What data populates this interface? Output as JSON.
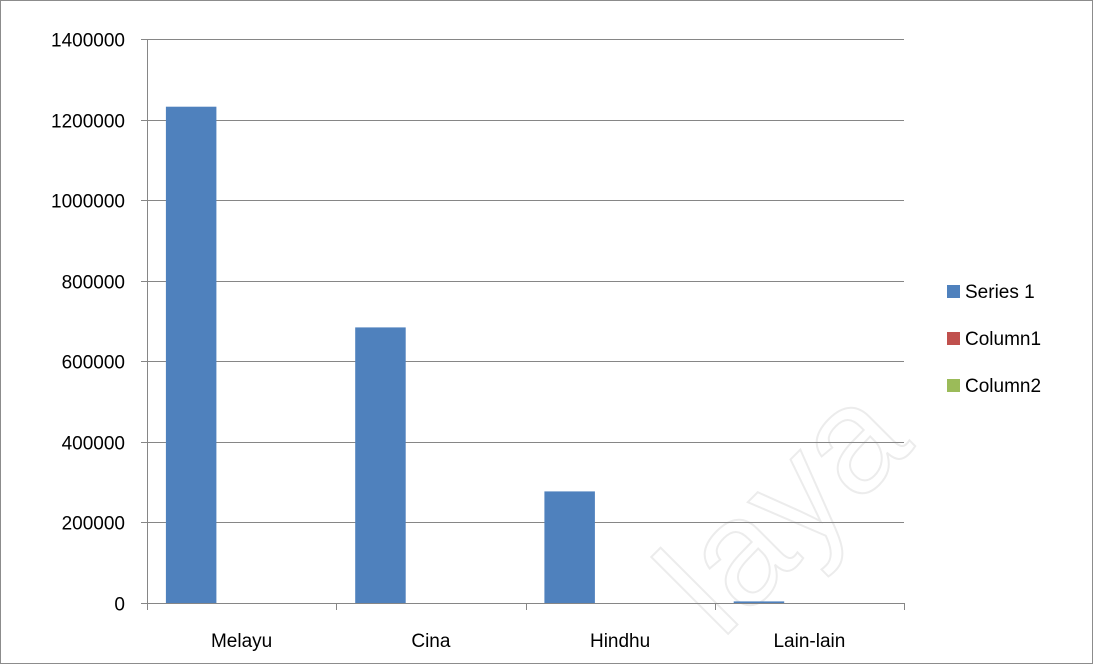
{
  "chart_data": {
    "type": "bar",
    "categories": [
      "Melayu",
      "Cina",
      "Hindhu",
      "Lain-lain"
    ],
    "series": [
      {
        "name": "Series 1",
        "color": "#4f81bd",
        "values": [
          1232000,
          684000,
          277000,
          4000
        ]
      },
      {
        "name": "Column1",
        "color": "#c0504d",
        "values": [
          0,
          0,
          0,
          0
        ]
      },
      {
        "name": "Column2",
        "color": "#9bbb59",
        "values": [
          0,
          0,
          0,
          0
        ]
      }
    ],
    "ylim": [
      0,
      1400000
    ],
    "yticks": [
      0,
      200000,
      400000,
      600000,
      800000,
      1000000,
      1200000,
      1400000
    ],
    "ytick_labels": [
      "0",
      "200000",
      "400000",
      "600000",
      "800000",
      "1000000",
      "1200000",
      "1400000"
    ],
    "grid": true,
    "legend_position": "right"
  },
  "watermark": {
    "text": "laya",
    "color": "#ececec"
  }
}
